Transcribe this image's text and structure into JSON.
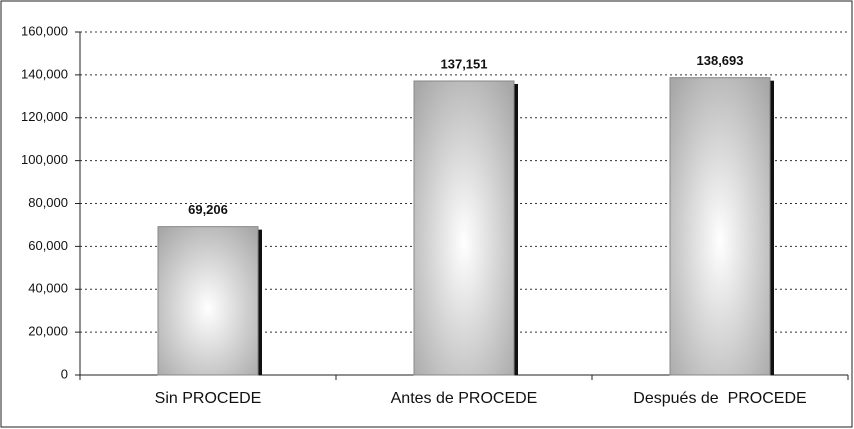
{
  "chart_data": {
    "type": "bar",
    "categories": [
      "Sin PROCEDE",
      "Antes de PROCEDE",
      "Después de  PROCEDE"
    ],
    "values": [
      69206,
      137151,
      138693
    ],
    "value_labels": [
      "69,206",
      "137,151",
      "138,693"
    ],
    "color": "#d0d0d0",
    "ylim": [
      0,
      160000
    ],
    "yticks": [
      0,
      {
        "value": 20000,
        "label": "20,000"
      },
      {
        "value": 40000,
        "label": "40,000"
      },
      {
        "value": 60000,
        "label": "60,000"
      },
      {
        "value": 80000,
        "label": "80,000"
      },
      {
        "value": 100000,
        "label": "100,000"
      },
      {
        "value": 120000,
        "label": "120,000"
      },
      {
        "value": 140000,
        "label": "140,000"
      },
      {
        "value": 160000,
        "label": "160,000"
      }
    ],
    "grid": true
  }
}
